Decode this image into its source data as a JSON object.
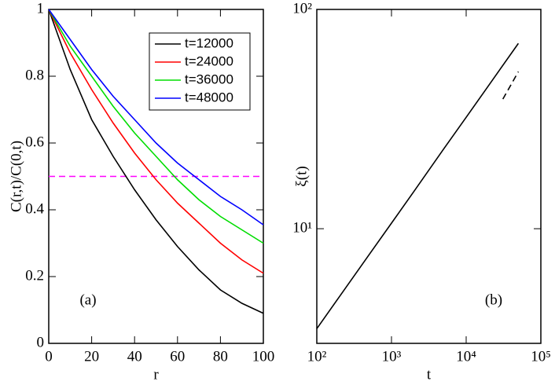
{
  "chart_data": [
    {
      "type": "line",
      "annotation": "(a)",
      "xlabel": "r",
      "ylabel": "C(r,t)/C(0,t)",
      "x": [
        0,
        10,
        20,
        30,
        40,
        50,
        60,
        70,
        80,
        90,
        100
      ],
      "series": [
        {
          "name": "t=12000",
          "color": "#000000",
          "values": [
            1,
            0.82,
            0.67,
            0.56,
            0.46,
            0.37,
            0.29,
            0.22,
            0.16,
            0.12,
            0.09
          ]
        },
        {
          "name": "t=24000",
          "color": "#ff0000",
          "values": [
            1,
            0.87,
            0.76,
            0.66,
            0.57,
            0.49,
            0.42,
            0.36,
            0.3,
            0.25,
            0.21
          ]
        },
        {
          "name": "t=36000",
          "color": "#00dd00",
          "values": [
            1,
            0.89,
            0.8,
            0.71,
            0.63,
            0.56,
            0.49,
            0.43,
            0.38,
            0.34,
            0.3
          ]
        },
        {
          "name": "t=48000",
          "color": "#0000ff",
          "values": [
            1,
            0.91,
            0.82,
            0.74,
            0.67,
            0.6,
            0.54,
            0.49,
            0.44,
            0.4,
            0.355
          ]
        }
      ],
      "hline": {
        "y": 0.5,
        "color": "#ff00ff",
        "dash": true
      },
      "xlim": [
        0,
        100
      ],
      "xticks": [
        0,
        20,
        40,
        60,
        80,
        100
      ],
      "ylim": [
        0,
        1
      ],
      "yticks": [
        0,
        0.2,
        0.4,
        0.6,
        0.8,
        1
      ],
      "legend": "top-right"
    },
    {
      "type": "line",
      "annotation": "(b)",
      "xlabel": "t",
      "ylabel": "ξ(t)",
      "log_x": true,
      "log_y": true,
      "x": [
        100,
        200,
        500,
        1000,
        2000,
        5000,
        10000,
        20000,
        50000
      ],
      "series": [
        {
          "color": "#000000",
          "values": [
            3.5,
            4.89,
            7.6,
            10.6,
            14.8,
            23.1,
            32.2,
            45.0,
            70
          ]
        },
        {
          "color": "#000000",
          "dash": true,
          "x": [
            31000,
            50000
          ],
          "values": [
            39,
            52
          ]
        }
      ],
      "xlim": [
        100,
        100000
      ],
      "xticks": [
        {
          "value": 100,
          "label": "10²"
        },
        {
          "value": 1000,
          "label": "10³"
        },
        {
          "value": 10000,
          "label": "10⁴"
        },
        {
          "value": 100000,
          "label": "10⁵"
        }
      ],
      "ylim": [
        3,
        100
      ],
      "yticks": [
        {
          "value": 10,
          "label": "10¹"
        },
        {
          "value": 100,
          "label": "10²"
        }
      ]
    }
  ]
}
